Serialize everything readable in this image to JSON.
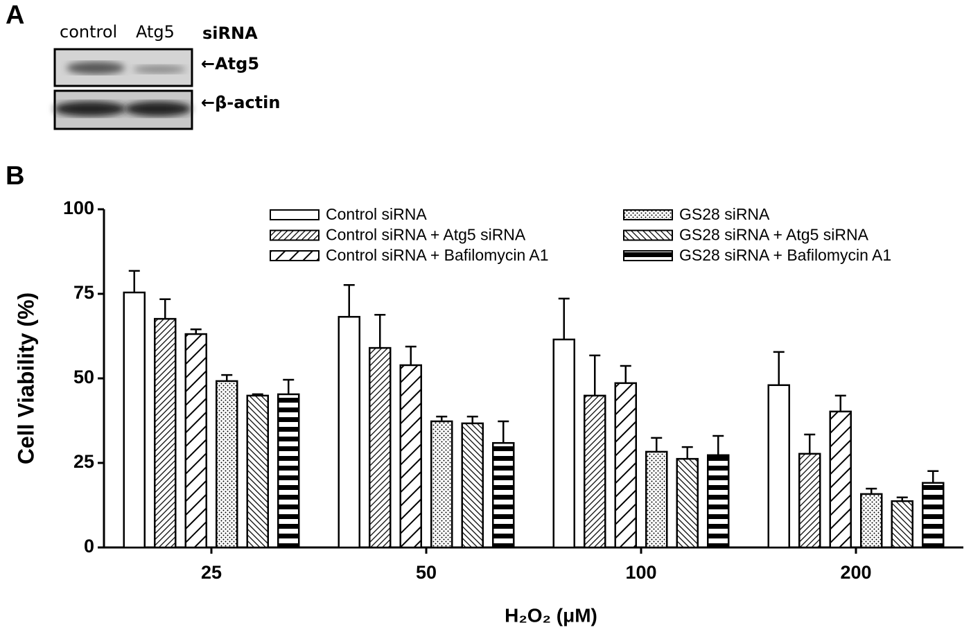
{
  "panel_a": {
    "label": "A",
    "lanes": [
      "control",
      "Atg5"
    ],
    "lane_caption": "siRNA",
    "bands": [
      "←Atg5",
      "←β-actin"
    ]
  },
  "panel_b": {
    "label": "B"
  },
  "chart_data": {
    "type": "bar",
    "y_label": "Cell Viability (%)",
    "x_label": "H₂O₂ (μM)",
    "categories": [
      "25",
      "50",
      "100",
      "200"
    ],
    "ylim": [
      0,
      100
    ],
    "yticks": [
      0,
      25,
      50,
      75,
      100
    ],
    "color": "#000000",
    "series": [
      {
        "name": "Control siRNA",
        "pattern": "none",
        "values": [
          75.4,
          68.2,
          61.5,
          48.0
        ],
        "errors": [
          6.4,
          9.4,
          12.1,
          9.8
        ]
      },
      {
        "name": "Control siRNA + Atg5 siRNA",
        "pattern": "hatch-dense",
        "values": [
          67.6,
          59.0,
          44.9,
          27.7
        ],
        "errors": [
          5.8,
          9.8,
          11.9,
          5.7
        ]
      },
      {
        "name": "Control siRNA + Bafilomycin A1",
        "pattern": "hatch-wide",
        "values": [
          63.1,
          53.9,
          48.6,
          40.2
        ],
        "errors": [
          1.4,
          5.5,
          5.1,
          4.7
        ]
      },
      {
        "name": "GS28 siRNA",
        "pattern": "dots",
        "values": [
          49.2,
          37.3,
          28.3,
          15.8
        ],
        "errors": [
          1.8,
          1.4,
          4.1,
          1.6
        ]
      },
      {
        "name": "GS28 siRNA + Atg5 siRNA",
        "pattern": "hatch-back",
        "values": [
          44.9,
          36.7,
          26.2,
          13.7
        ],
        "errors": [
          0.4,
          2.0,
          3.5,
          1.1
        ]
      },
      {
        "name": "GS28 siRNA + Bafilomycin A1",
        "pattern": "stripes",
        "values": [
          45.3,
          30.9,
          27.3,
          19.1
        ],
        "errors": [
          4.3,
          6.4,
          5.7,
          3.5
        ]
      }
    ]
  }
}
